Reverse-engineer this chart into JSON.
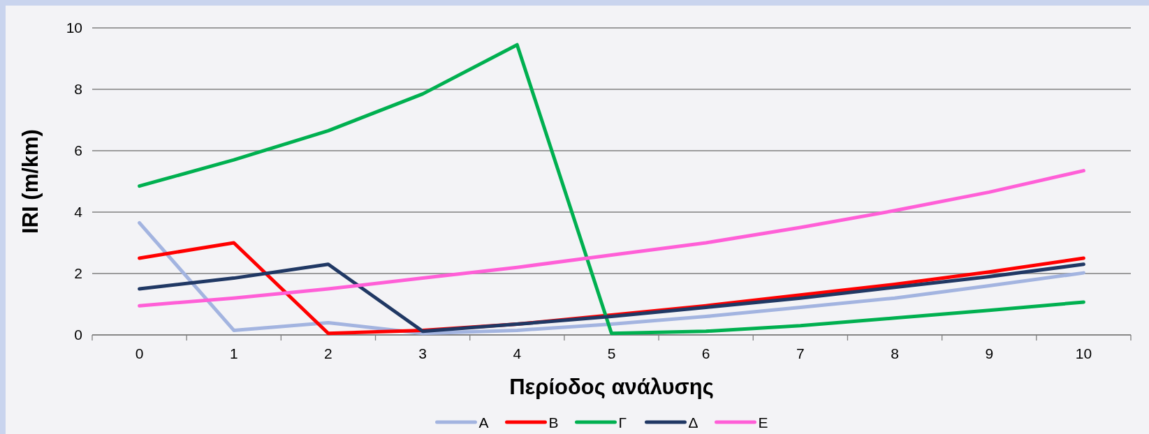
{
  "chart_data": {
    "type": "line",
    "xlabel": "Περίοδος ανάλυσης",
    "ylabel": "IRI (m/km)",
    "categories": [
      "0",
      "1",
      "2",
      "3",
      "4",
      "5",
      "6",
      "7",
      "8",
      "9",
      "10"
    ],
    "ylim": [
      0,
      10
    ],
    "yticks": [
      0,
      2,
      4,
      6,
      8,
      10
    ],
    "grid": "y",
    "legend": "bottom",
    "marker": "none",
    "line_style": "solid",
    "series": [
      {
        "name": "Α",
        "color": "#a3b4e0",
        "values": [
          3.65,
          0.15,
          0.4,
          0.05,
          0.15,
          0.35,
          0.6,
          0.9,
          1.2,
          1.6,
          2.02
        ]
      },
      {
        "name": "Β",
        "color": "#ff0000",
        "values": [
          2.5,
          3.0,
          0.05,
          0.15,
          0.35,
          0.65,
          0.95,
          1.3,
          1.65,
          2.05,
          2.5
        ]
      },
      {
        "name": "Γ",
        "color": "#00b050",
        "values": [
          4.85,
          5.7,
          6.65,
          7.85,
          9.45,
          0.05,
          0.12,
          0.3,
          0.55,
          0.8,
          1.07
        ]
      },
      {
        "name": "Δ",
        "color": "#203864",
        "values": [
          1.5,
          1.85,
          2.3,
          0.12,
          0.35,
          0.6,
          0.9,
          1.2,
          1.55,
          1.9,
          2.3
        ]
      },
      {
        "name": "Ε",
        "color": "#ff5fd7",
        "values": [
          0.95,
          1.2,
          1.5,
          1.85,
          2.2,
          2.6,
          3.0,
          3.5,
          4.05,
          4.65,
          5.35
        ]
      }
    ]
  }
}
